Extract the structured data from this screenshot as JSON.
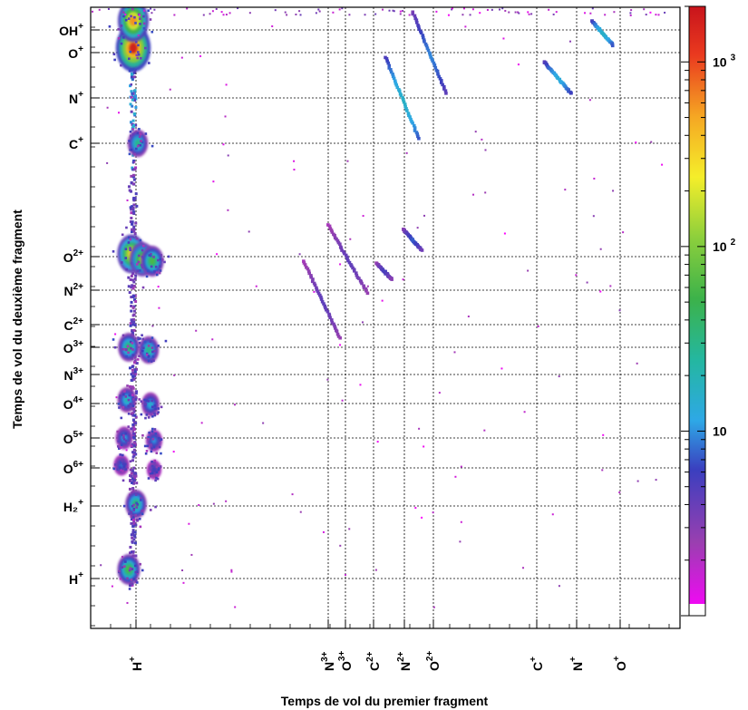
{
  "chart_data": {
    "type": "heatmap",
    "xlabel": "Temps de vol du premier fragment",
    "ylabel": "Temps de vol du deuxième fragment",
    "x_ticks": [
      {
        "ion": "H",
        "charge": "+",
        "x": 50
      },
      {
        "ion": "N",
        "charge": "3+",
        "x": 262
      },
      {
        "ion": "O",
        "charge": "3+",
        "x": 281
      },
      {
        "ion": "C",
        "charge": "2+",
        "x": 312
      },
      {
        "ion": "N",
        "charge": "2+",
        "x": 346
      },
      {
        "ion": "O",
        "charge": "2+",
        "x": 378
      },
      {
        "ion": "C",
        "charge": "+",
        "x": 492
      },
      {
        "ion": "N",
        "charge": "+",
        "x": 536
      },
      {
        "ion": "O",
        "charge": "+",
        "x": 584
      }
    ],
    "y_ticks": [
      {
        "ion": "OH",
        "charge": "+",
        "y": 25
      },
      {
        "ion": "O",
        "charge": "+",
        "y": 50
      },
      {
        "ion": "N",
        "charge": "+",
        "y": 100
      },
      {
        "ion": "C",
        "charge": "+",
        "y": 150
      },
      {
        "ion": "O",
        "charge": "2+",
        "y": 275
      },
      {
        "ion": "N",
        "charge": "2+",
        "y": 312
      },
      {
        "ion": "C",
        "charge": "2+",
        "y": 350
      },
      {
        "ion": "O",
        "charge": "3+",
        "y": 375
      },
      {
        "ion": "N",
        "charge": "3+",
        "y": 405
      },
      {
        "ion": "O",
        "charge": "4+",
        "y": 437
      },
      {
        "ion": "O",
        "charge": "5+",
        "y": 475
      },
      {
        "ion": "O",
        "charge": "6+",
        "y": 508
      },
      {
        "ion": "H₂",
        "charge": "+",
        "y": 550
      },
      {
        "ion": "H",
        "charge": "+",
        "y": 630
      }
    ],
    "xlim": [
      0,
      650
    ],
    "ylim": [
      0,
      685
    ],
    "colorbar": {
      "scale": "log",
      "range": [
        1,
        2000
      ],
      "tick_labels": [
        {
          "value": 10,
          "base": "10",
          "exp": ""
        },
        {
          "value": 100,
          "base": "10",
          "exp": "2"
        },
        {
          "value": 1000,
          "base": "10",
          "exp": "3"
        }
      ]
    },
    "hotspots": [
      {
        "x": 47,
        "y": 45,
        "count": 1800
      },
      {
        "x": 47,
        "y": 15,
        "count": 600
      },
      {
        "x": 45,
        "y": 272,
        "count": 300
      },
      {
        "x": 57,
        "y": 278,
        "count": 120
      },
      {
        "x": 68,
        "y": 280,
        "count": 60
      },
      {
        "x": 42,
        "y": 375,
        "count": 40
      },
      {
        "x": 64,
        "y": 378,
        "count": 30
      },
      {
        "x": 40,
        "y": 433,
        "count": 20
      },
      {
        "x": 66,
        "y": 438,
        "count": 15
      },
      {
        "x": 37,
        "y": 475,
        "count": 12
      },
      {
        "x": 70,
        "y": 478,
        "count": 10
      },
      {
        "x": 34,
        "y": 505,
        "count": 8
      },
      {
        "x": 70,
        "y": 510,
        "count": 6
      },
      {
        "x": 50,
        "y": 548,
        "count": 40
      },
      {
        "x": 42,
        "y": 620,
        "count": 60
      },
      {
        "x": 52,
        "y": 150,
        "count": 30
      }
    ],
    "diagonals": [
      {
        "x1": 355,
        "y1": 5,
        "x2": 392,
        "y2": 95,
        "count": 8
      },
      {
        "x1": 325,
        "y1": 55,
        "x2": 362,
        "y2": 145,
        "count": 15
      },
      {
        "x1": 553,
        "y1": 15,
        "x2": 576,
        "y2": 42,
        "count": 15
      },
      {
        "x1": 500,
        "y1": 60,
        "x2": 530,
        "y2": 95,
        "count": 12
      },
      {
        "x1": 345,
        "y1": 245,
        "x2": 365,
        "y2": 268,
        "count": 6
      },
      {
        "x1": 315,
        "y1": 282,
        "x2": 332,
        "y2": 300,
        "count": 4
      },
      {
        "x1": 262,
        "y1": 240,
        "x2": 305,
        "y2": 315,
        "count": 3
      },
      {
        "x1": 235,
        "y1": 280,
        "x2": 275,
        "y2": 365,
        "count": 3
      }
    ]
  }
}
